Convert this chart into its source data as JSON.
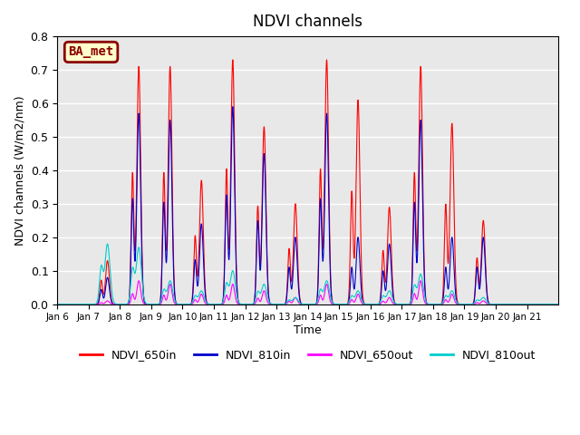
{
  "title": "NDVI channels",
  "xlabel": "Time",
  "ylabel": "NDVI channels (W/m2/nm)",
  "ylim": [
    0.0,
    0.8
  ],
  "plot_bg_color": "#e8e8e8",
  "colors": {
    "NDVI_650in": "#ff0000",
    "NDVI_810in": "#0000cc",
    "NDVI_650out": "#ff00ff",
    "NDVI_810out": "#00cccc"
  },
  "ba_met_label": "BA_met",
  "ba_met_facecolor": "#ffffcc",
  "ba_met_edgecolor": "#8b0000",
  "ba_met_textcolor": "#8b0000",
  "x_tick_labels": [
    "Jan 6",
    "Jan 7",
    "Jan 8",
    "Jan 9",
    "Jan 10",
    "Jan 11",
    "Jan 12",
    "Jan 13",
    "Jan 14",
    "Jan 15",
    "Jan 16",
    "Jan 17",
    "Jan 18",
    "Jan 19",
    "Jan 20",
    "Jan 21"
  ],
  "daily_peaks_650in": [
    0.0,
    0.13,
    0.71,
    0.71,
    0.37,
    0.73,
    0.53,
    0.3,
    0.73,
    0.61,
    0.29,
    0.71,
    0.54,
    0.25,
    0.0,
    0.0
  ],
  "daily_peaks_810in": [
    0.0,
    0.08,
    0.57,
    0.55,
    0.24,
    0.59,
    0.45,
    0.2,
    0.57,
    0.2,
    0.18,
    0.55,
    0.2,
    0.2,
    0.0,
    0.0
  ],
  "daily_peaks_650out": [
    0.0,
    0.01,
    0.07,
    0.06,
    0.03,
    0.06,
    0.04,
    0.02,
    0.06,
    0.03,
    0.02,
    0.07,
    0.03,
    0.01,
    0.0,
    0.0
  ],
  "daily_peaks_810out": [
    0.0,
    0.18,
    0.17,
    0.07,
    0.04,
    0.1,
    0.06,
    0.02,
    0.07,
    0.04,
    0.04,
    0.09,
    0.04,
    0.02,
    0.0,
    0.0
  ],
  "points_per_day": 300,
  "num_days": 16,
  "figsize": [
    6.4,
    4.8
  ],
  "dpi": 100
}
